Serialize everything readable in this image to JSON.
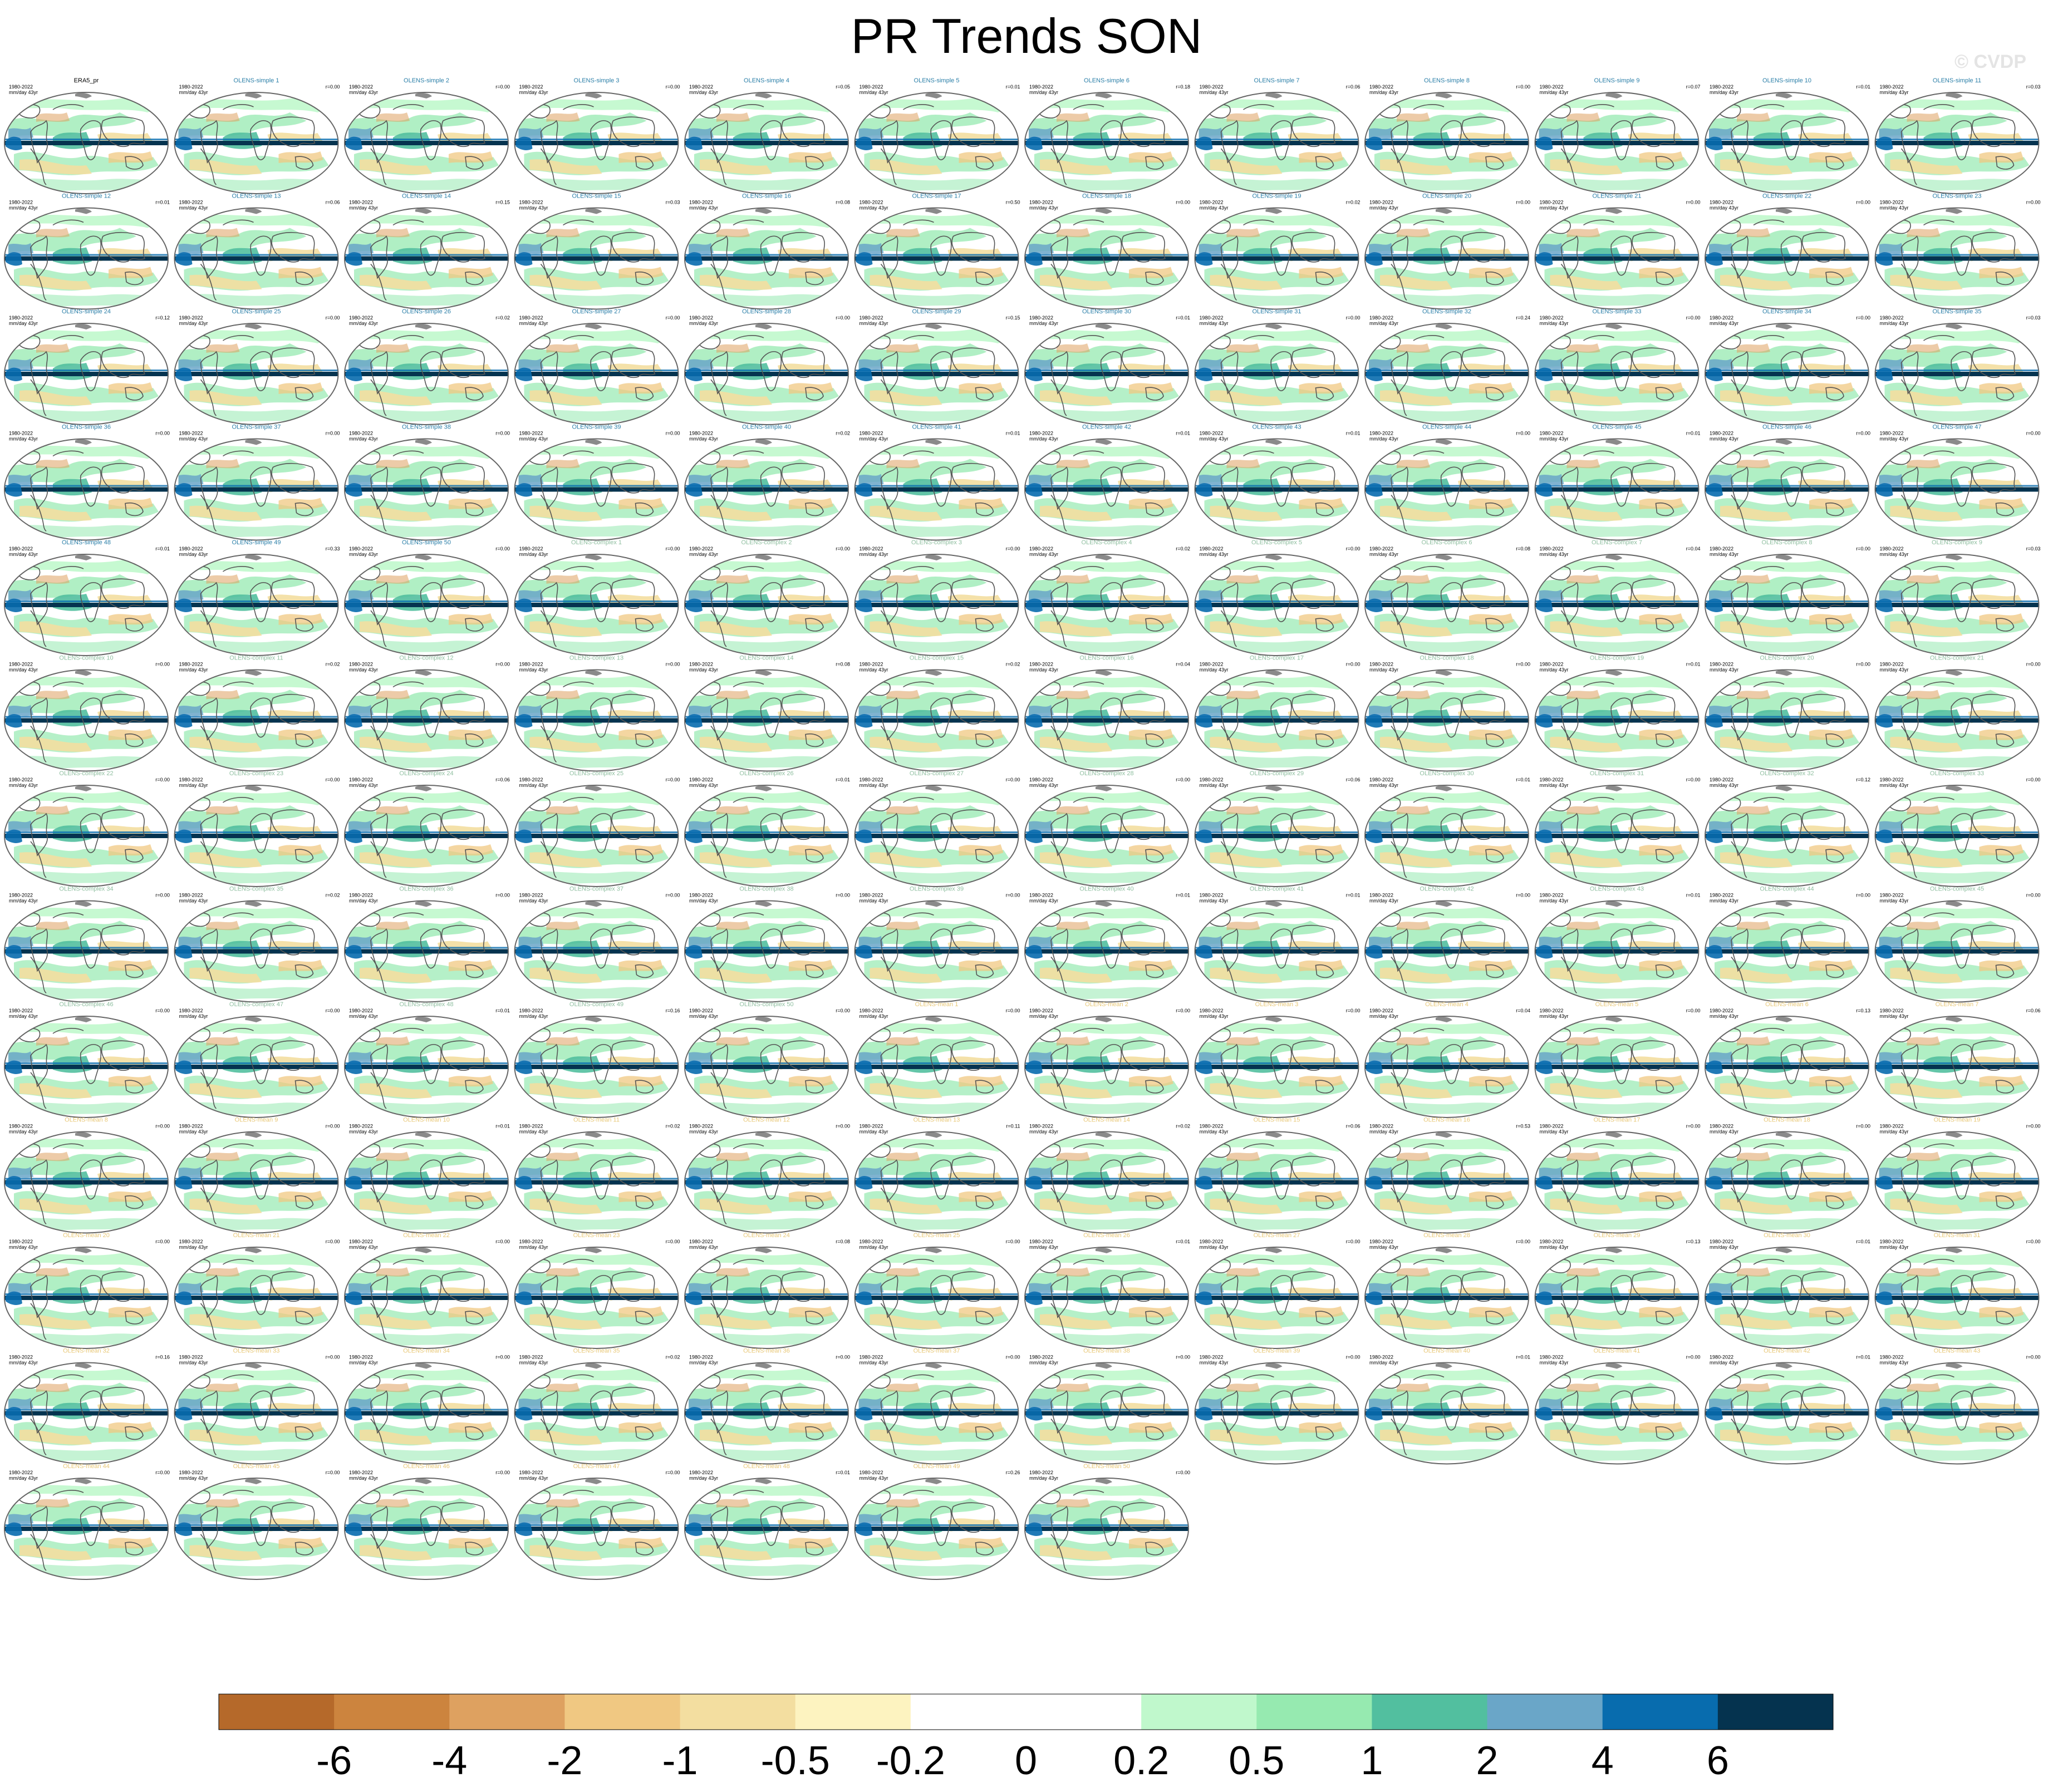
{
  "title": "PR Trends SON",
  "watermark": "© CVDP",
  "panel_info": {
    "period": "1980-2022",
    "units": "mm/day 43yr"
  },
  "panels": [
    {
      "label": "ERA5_pr",
      "r": ""
    },
    {
      "label": "OLENS-simple 1",
      "r": "r=0.00"
    },
    {
      "label": "OLENS-simple 2",
      "r": "r=0.00"
    },
    {
      "label": "OLENS-simple 3",
      "r": "r=0.00"
    },
    {
      "label": "OLENS-simple 4",
      "r": "r=0.05"
    },
    {
      "label": "OLENS-simple 5",
      "r": "r=0.01"
    },
    {
      "label": "OLENS-simple 6",
      "r": "r=0.18"
    },
    {
      "label": "OLENS-simple 7",
      "r": "r=0.06"
    },
    {
      "label": "OLENS-simple 8",
      "r": "r=0.00"
    },
    {
      "label": "OLENS-simple 9",
      "r": "r=0.07"
    },
    {
      "label": "OLENS-simple 10",
      "r": "r=0.01"
    },
    {
      "label": "OLENS-simple 11",
      "r": "r=0.03"
    },
    {
      "label": "OLENS-simple 12",
      "r": "r=0.01"
    },
    {
      "label": "OLENS-simple 13",
      "r": "r=0.06"
    },
    {
      "label": "OLENS-simple 14",
      "r": "r=0.15"
    },
    {
      "label": "OLENS-simple 15",
      "r": "r=0.03"
    },
    {
      "label": "OLENS-simple 16",
      "r": "r=0.08"
    },
    {
      "label": "OLENS-simple 17",
      "r": "r=0.50"
    },
    {
      "label": "OLENS-simple 18",
      "r": "r=0.00"
    },
    {
      "label": "OLENS-simple 19",
      "r": "r=0.02"
    },
    {
      "label": "OLENS-simple 20",
      "r": "r=0.00"
    },
    {
      "label": "OLENS-simple 21",
      "r": "r=0.00"
    },
    {
      "label": "OLENS-simple 22",
      "r": "r=0.00"
    },
    {
      "label": "OLENS-simple 23",
      "r": "r=0.00"
    },
    {
      "label": "OLENS-simple 24",
      "r": "r=0.12"
    },
    {
      "label": "OLENS-simple 25",
      "r": "r=0.00"
    },
    {
      "label": "OLENS-simple 26",
      "r": "r=0.02"
    },
    {
      "label": "OLENS-simple 27",
      "r": "r=0.00"
    },
    {
      "label": "OLENS-simple 28",
      "r": "r=0.00"
    },
    {
      "label": "OLENS-simple 29",
      "r": "r=0.15"
    },
    {
      "label": "OLENS-simple 30",
      "r": "r=0.01"
    },
    {
      "label": "OLENS-simple 31",
      "r": "r=0.00"
    },
    {
      "label": "OLENS-simple 32",
      "r": "r=0.24"
    },
    {
      "label": "OLENS-simple 33",
      "r": "r=0.00"
    },
    {
      "label": "OLENS-simple 34",
      "r": "r=0.00"
    },
    {
      "label": "OLENS-simple 35",
      "r": "r=0.03"
    },
    {
      "label": "OLENS-simple 36",
      "r": "r=0.00"
    },
    {
      "label": "OLENS-simple 37",
      "r": "r=0.00"
    },
    {
      "label": "OLENS-simple 38",
      "r": "r=0.00"
    },
    {
      "label": "OLENS-simple 39",
      "r": "r=0.00"
    },
    {
      "label": "OLENS-simple 40",
      "r": "r=0.02"
    },
    {
      "label": "OLENS-simple 41",
      "r": "r=0.01"
    },
    {
      "label": "OLENS-simple 42",
      "r": "r=0.01"
    },
    {
      "label": "OLENS-simple 43",
      "r": "r=0.01"
    },
    {
      "label": "OLENS-simple 44",
      "r": "r=0.00"
    },
    {
      "label": "OLENS-simple 45",
      "r": "r=0.01"
    },
    {
      "label": "OLENS-simple 46",
      "r": "r=0.00"
    },
    {
      "label": "OLENS-simple 47",
      "r": "r=0.00"
    },
    {
      "label": "OLENS-simple 48",
      "r": "r=0.01"
    },
    {
      "label": "OLENS-simple 49",
      "r": "r=0.33"
    },
    {
      "label": "OLENS-simple 50",
      "r": "r=0.00"
    },
    {
      "label": "OLENS-complex 1",
      "r": "r=0.00"
    },
    {
      "label": "OLENS-complex 2",
      "r": "r=0.00"
    },
    {
      "label": "OLENS-complex 3",
      "r": "r=0.00"
    },
    {
      "label": "OLENS-complex 4",
      "r": "r=0.02"
    },
    {
      "label": "OLENS-complex 5",
      "r": "r=0.00"
    },
    {
      "label": "OLENS-complex 6",
      "r": "r=0.08"
    },
    {
      "label": "OLENS-complex 7",
      "r": "r=0.04"
    },
    {
      "label": "OLENS-complex 8",
      "r": "r=0.00"
    },
    {
      "label": "OLENS-complex 9",
      "r": "r=0.03"
    },
    {
      "label": "OLENS-complex 10",
      "r": "r=0.00"
    },
    {
      "label": "OLENS-complex 11",
      "r": "r=0.02"
    },
    {
      "label": "OLENS-complex 12",
      "r": "r=0.00"
    },
    {
      "label": "OLENS-complex 13",
      "r": "r=0.00"
    },
    {
      "label": "OLENS-complex 14",
      "r": "r=0.08"
    },
    {
      "label": "OLENS-complex 15",
      "r": "r=0.02"
    },
    {
      "label": "OLENS-complex 16",
      "r": "r=0.04"
    },
    {
      "label": "OLENS-complex 17",
      "r": "r=0.00"
    },
    {
      "label": "OLENS-complex 18",
      "r": "r=0.00"
    },
    {
      "label": "OLENS-complex 19",
      "r": "r=0.01"
    },
    {
      "label": "OLENS-complex 20",
      "r": "r=0.00"
    },
    {
      "label": "OLENS-complex 21",
      "r": "r=0.00"
    },
    {
      "label": "OLENS-complex 22",
      "r": "r=0.00"
    },
    {
      "label": "OLENS-complex 23",
      "r": "r=0.00"
    },
    {
      "label": "OLENS-complex 24",
      "r": "r=0.06"
    },
    {
      "label": "OLENS-complex 25",
      "r": "r=0.00"
    },
    {
      "label": "OLENS-complex 26",
      "r": "r=0.01"
    },
    {
      "label": "OLENS-complex 27",
      "r": "r=0.00"
    },
    {
      "label": "OLENS-complex 28",
      "r": "r=0.00"
    },
    {
      "label": "OLENS-complex 29",
      "r": "r=0.06"
    },
    {
      "label": "OLENS-complex 30",
      "r": "r=0.01"
    },
    {
      "label": "OLENS-complex 31",
      "r": "r=0.00"
    },
    {
      "label": "OLENS-complex 32",
      "r": "r=0.12"
    },
    {
      "label": "OLENS-complex 33",
      "r": "r=0.00"
    },
    {
      "label": "OLENS-complex 34",
      "r": "r=0.00"
    },
    {
      "label": "OLENS-complex 35",
      "r": "r=0.02"
    },
    {
      "label": "OLENS-complex 36",
      "r": "r=0.00"
    },
    {
      "label": "OLENS-complex 37",
      "r": "r=0.00"
    },
    {
      "label": "OLENS-complex 38",
      "r": "r=0.00"
    },
    {
      "label": "OLENS-complex 39",
      "r": "r=0.00"
    },
    {
      "label": "OLENS-complex 40",
      "r": "r=0.01"
    },
    {
      "label": "OLENS-complex 41",
      "r": "r=0.01"
    },
    {
      "label": "OLENS-complex 42",
      "r": "r=0.00"
    },
    {
      "label": "OLENS-complex 43",
      "r": "r=0.01"
    },
    {
      "label": "OLENS-complex 44",
      "r": "r=0.00"
    },
    {
      "label": "OLENS-complex 45",
      "r": "r=0.00"
    },
    {
      "label": "OLENS-complex 46",
      "r": "r=0.00"
    },
    {
      "label": "OLENS-complex 47",
      "r": "r=0.00"
    },
    {
      "label": "OLENS-complex 48",
      "r": "r=0.01"
    },
    {
      "label": "OLENS-complex 49",
      "r": "r=0.16"
    },
    {
      "label": "OLENS-complex 50",
      "r": "r=0.00"
    },
    {
      "label": "OLENS-mean 1",
      "r": "r=0.00"
    },
    {
      "label": "OLENS-mean 2",
      "r": "r=0.00"
    },
    {
      "label": "OLENS-mean 3",
      "r": "r=0.00"
    },
    {
      "label": "OLENS-mean 4",
      "r": "r=0.04"
    },
    {
      "label": "OLENS-mean 5",
      "r": "r=0.00"
    },
    {
      "label": "OLENS-mean 6",
      "r": "r=0.13"
    },
    {
      "label": "OLENS-mean 7",
      "r": "r=0.06"
    },
    {
      "label": "OLENS-mean 8",
      "r": "r=0.00"
    },
    {
      "label": "OLENS-mean 9",
      "r": "r=0.00"
    },
    {
      "label": "OLENS-mean 10",
      "r": "r=0.01"
    },
    {
      "label": "OLENS-mean 11",
      "r": "r=0.02"
    },
    {
      "label": "OLENS-mean 12",
      "r": "r=0.00"
    },
    {
      "label": "OLENS-mean 13",
      "r": "r=0.11"
    },
    {
      "label": "OLENS-mean 14",
      "r": "r=0.02"
    },
    {
      "label": "OLENS-mean 15",
      "r": "r=0.06"
    },
    {
      "label": "OLENS-mean 16",
      "r": "r=0.53"
    },
    {
      "label": "OLENS-mean 17",
      "r": "r=0.00"
    },
    {
      "label": "OLENS-mean 18",
      "r": "r=0.00"
    },
    {
      "label": "OLENS-mean 19",
      "r": "r=0.00"
    },
    {
      "label": "OLENS-mean 20",
      "r": "r=0.00"
    },
    {
      "label": "OLENS-mean 21",
      "r": "r=0.00"
    },
    {
      "label": "OLENS-mean 22",
      "r": "r=0.00"
    },
    {
      "label": "OLENS-mean 23",
      "r": "r=0.00"
    },
    {
      "label": "OLENS-mean 24",
      "r": "r=0.08"
    },
    {
      "label": "OLENS-mean 25",
      "r": "r=0.00"
    },
    {
      "label": "OLENS-mean 26",
      "r": "r=0.01"
    },
    {
      "label": "OLENS-mean 27",
      "r": "r=0.00"
    },
    {
      "label": "OLENS-mean 28",
      "r": "r=0.00"
    },
    {
      "label": "OLENS-mean 29",
      "r": "r=0.13"
    },
    {
      "label": "OLENS-mean 30",
      "r": "r=0.01"
    },
    {
      "label": "OLENS-mean 31",
      "r": "r=0.00"
    },
    {
      "label": "OLENS-mean 32",
      "r": "r=0.16"
    },
    {
      "label": "OLENS-mean 33",
      "r": "r=0.00"
    },
    {
      "label": "OLENS-mean 34",
      "r": "r=0.00"
    },
    {
      "label": "OLENS-mean 35",
      "r": "r=0.02"
    },
    {
      "label": "OLENS-mean 36",
      "r": "r=0.00"
    },
    {
      "label": "OLENS-mean 37",
      "r": "r=0.00"
    },
    {
      "label": "OLENS-mean 38",
      "r": "r=0.00"
    },
    {
      "label": "OLENS-mean 39",
      "r": "r=0.00"
    },
    {
      "label": "OLENS-mean 40",
      "r": "r=0.01"
    },
    {
      "label": "OLENS-mean 41",
      "r": "r=0.00"
    },
    {
      "label": "OLENS-mean 42",
      "r": "r=0.01"
    },
    {
      "label": "OLENS-mean 43",
      "r": "r=0.00"
    },
    {
      "label": "OLENS-mean 44",
      "r": "r=0.00"
    },
    {
      "label": "OLENS-mean 45",
      "r": "r=0.00"
    },
    {
      "label": "OLENS-mean 46",
      "r": "r=0.00"
    },
    {
      "label": "OLENS-mean 47",
      "r": "r=0.00"
    },
    {
      "label": "OLENS-mean 48",
      "r": "r=0.01"
    },
    {
      "label": "OLENS-mean 49",
      "r": "r=0.26"
    },
    {
      "label": "OLENS-mean 50",
      "r": "r=0.00"
    }
  ],
  "label_colors": {
    "observation": "#000000",
    "simple": "#2b7fa8",
    "complex": "#8fbfa0",
    "mean": "#e8c878"
  },
  "chart_data": {
    "type": "heatmap",
    "title": "PR Trends SON",
    "colorbar": {
      "ticks": [
        "-6",
        "-4",
        "-2",
        "-1",
        "-0.5",
        "-0.2",
        "0",
        "0.2",
        "0.5",
        "1",
        "2",
        "4",
        "6"
      ],
      "colors": [
        "#b5692a",
        "#cc843e",
        "#dea160",
        "#f0c882",
        "#f3dea0",
        "#fdf3c0",
        "#ffffff",
        "#ffffff",
        "#c0f8cc",
        "#96eab0",
        "#52bf9f",
        "#6aa6c8",
        "#086cae",
        "#05334f"
      ]
    },
    "map_colors": {
      "land_mask": "#8a8a8a",
      "coast": "#555555",
      "map_border": "#666666"
    }
  }
}
